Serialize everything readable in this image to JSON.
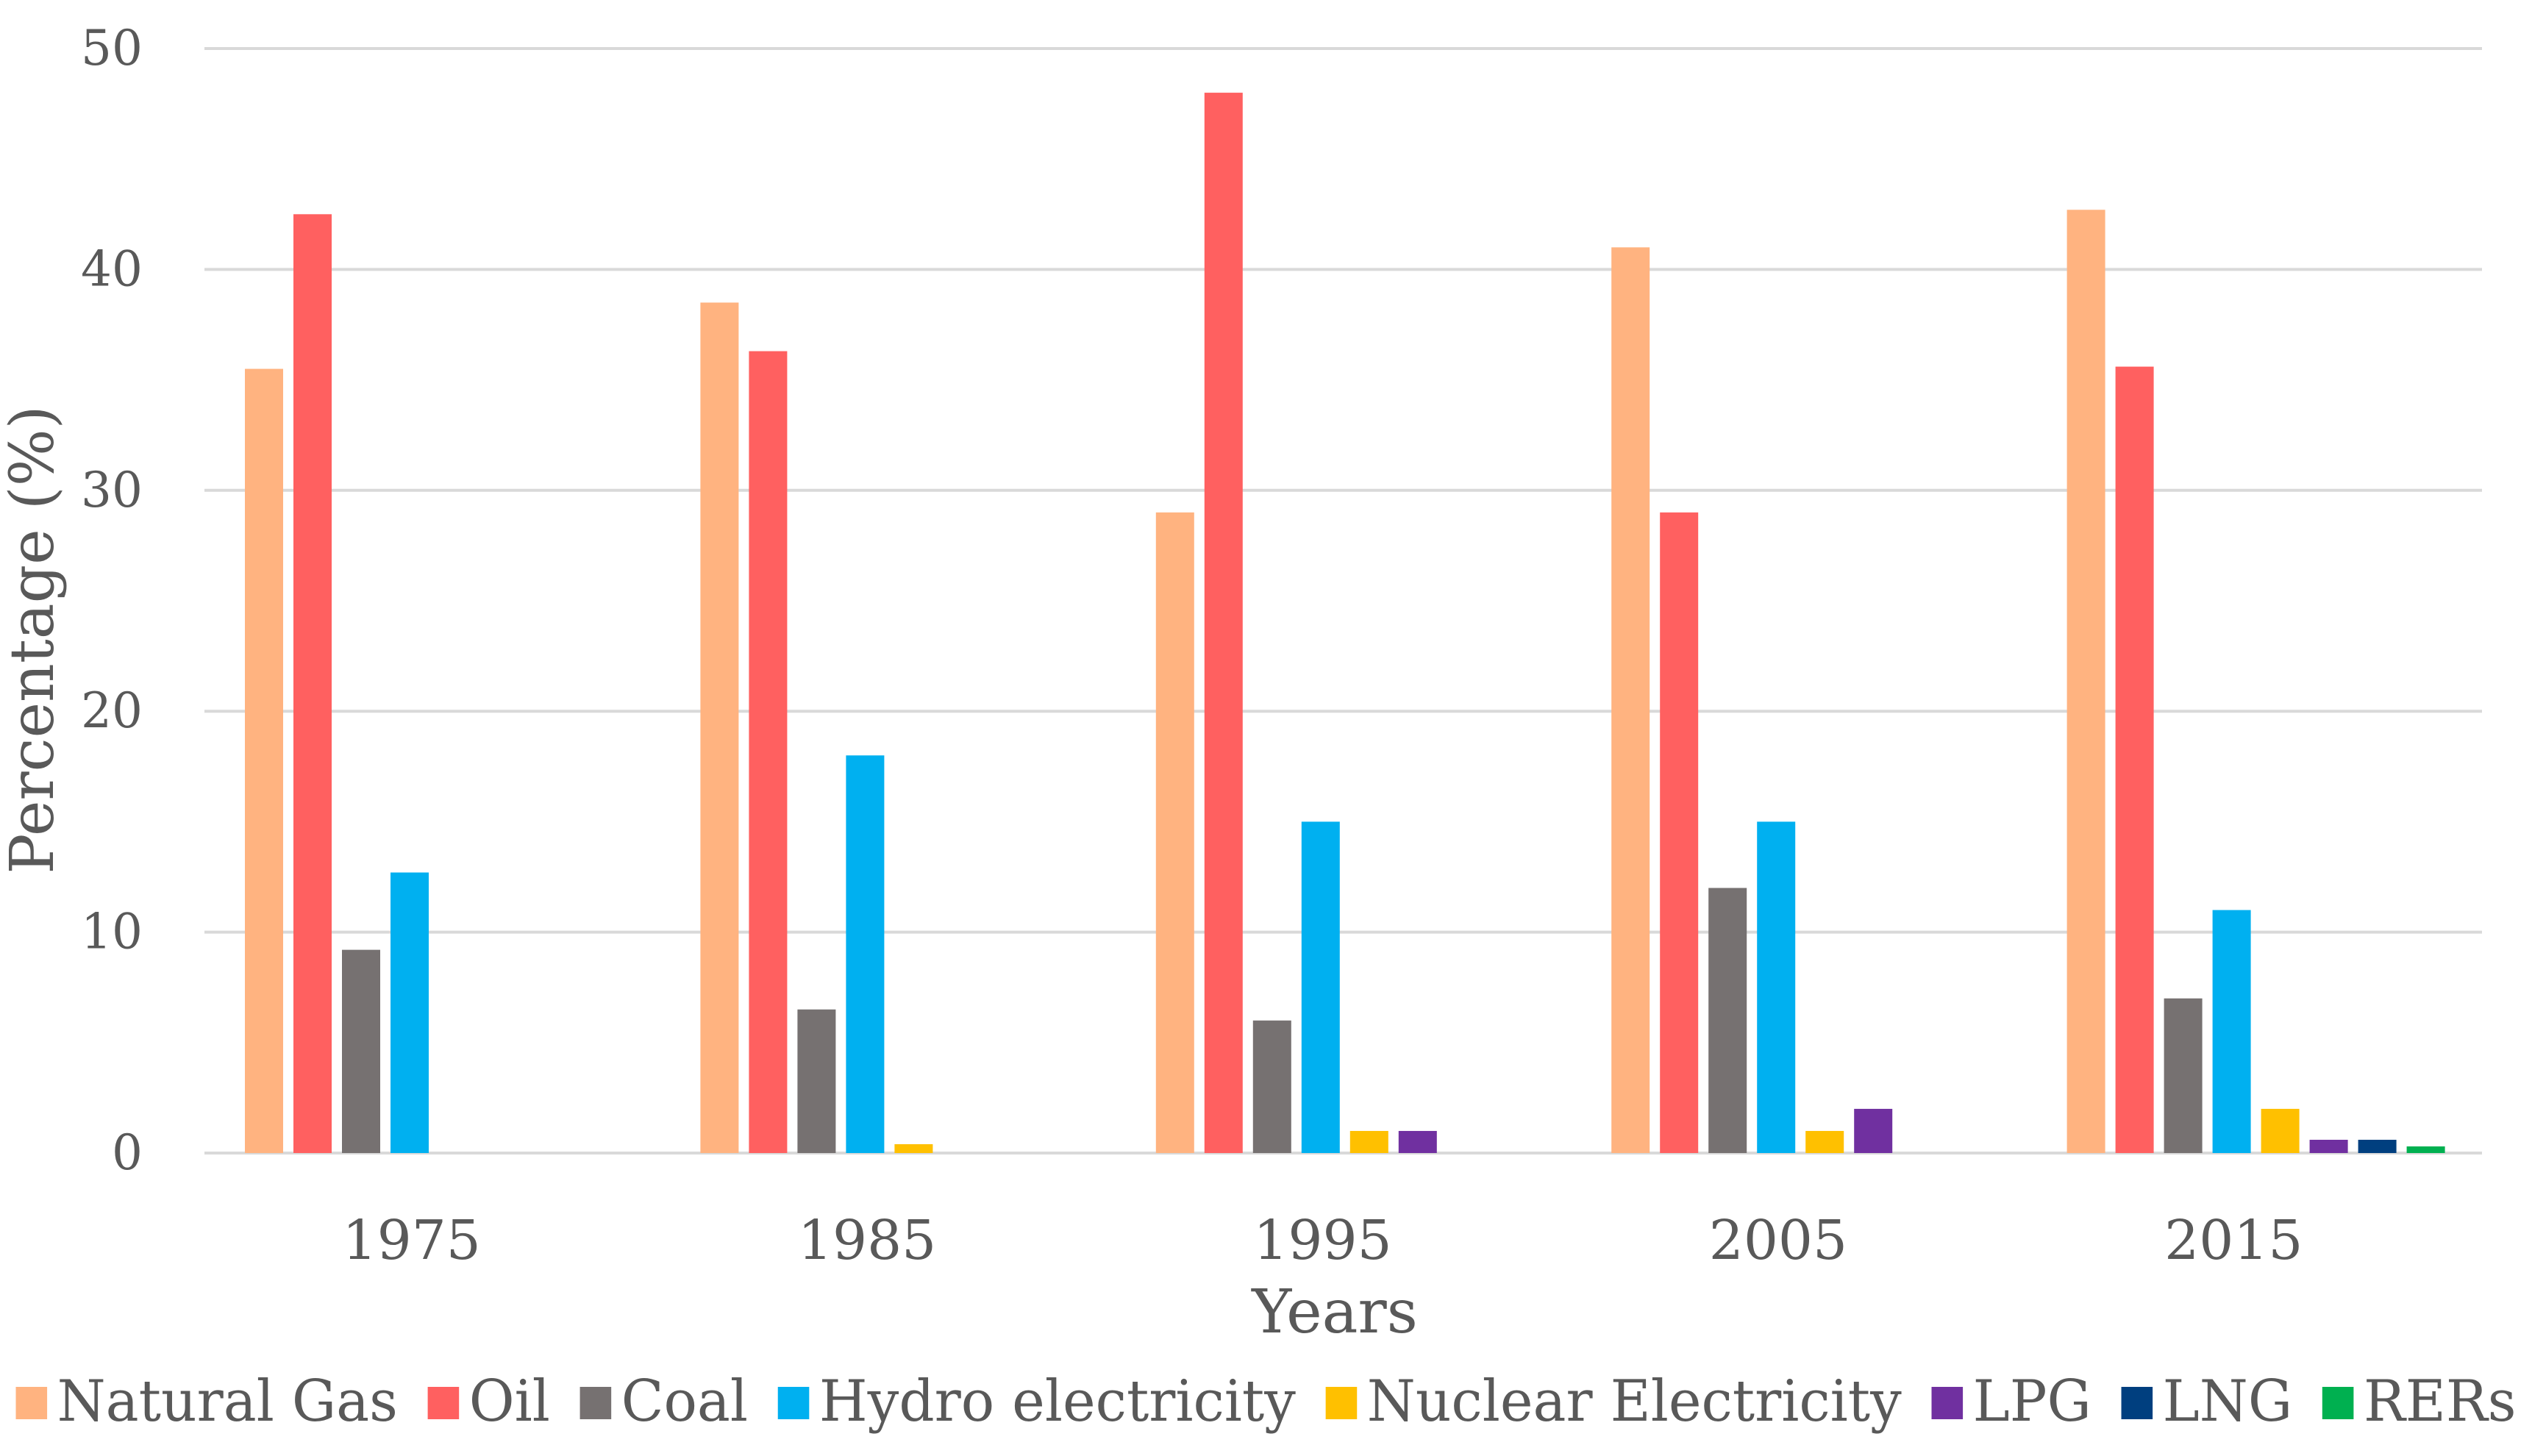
{
  "chart_data": {
    "type": "bar",
    "title": "",
    "xlabel": "Years",
    "ylabel": "Percentage (%)",
    "ylim": [
      0,
      50
    ],
    "yticks": [
      "0",
      "10",
      "20",
      "30",
      "40",
      "50"
    ],
    "grid": true,
    "legend_position": "bottom",
    "categories": [
      "1975",
      "1985",
      "1995",
      "2005",
      "2015"
    ],
    "series": [
      {
        "name": "Natural Gas",
        "color": "#FFB380",
        "values": [
          35.5,
          38.5,
          29,
          41,
          42.7
        ]
      },
      {
        "name": "Oil",
        "color": "#FF6060",
        "values": [
          42.5,
          36.3,
          48,
          29,
          35.6
        ]
      },
      {
        "name": "Coal",
        "color": "#767171",
        "values": [
          9.2,
          6.5,
          6,
          12,
          7
        ]
      },
      {
        "name": "Hydro electricity",
        "color": "#00B0F0",
        "values": [
          12.7,
          18,
          15,
          15,
          11
        ]
      },
      {
        "name": "Nuclear Electricity",
        "color": "#FFC000",
        "values": [
          0,
          0.4,
          1,
          1,
          2
        ]
      },
      {
        "name": "LPG",
        "color": "#7030A0",
        "values": [
          0,
          0,
          1,
          2,
          0.6
        ]
      },
      {
        "name": "LNG",
        "color": "#003F7F",
        "values": [
          0,
          0,
          0,
          0,
          0.6
        ]
      },
      {
        "name": "RERs",
        "color": "#00B050",
        "values": [
          0,
          0,
          0,
          0,
          0.3
        ]
      }
    ]
  }
}
